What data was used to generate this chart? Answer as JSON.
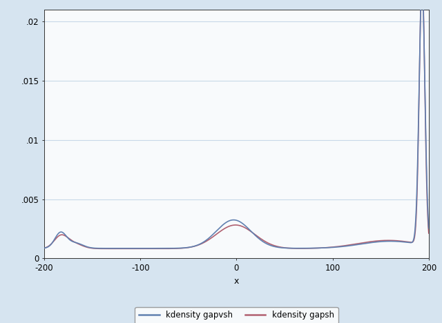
{
  "xlabel": "x",
  "ylabel": "",
  "xlim": [
    -200,
    200
  ],
  "ylim": [
    0,
    0.021
  ],
  "yticks": [
    0,
    0.005,
    0.01,
    0.015,
    0.02
  ],
  "ytick_labels": [
    "0",
    ".005",
    ".01",
    ".015",
    ".02"
  ],
  "xticks": [
    -200,
    -100,
    0,
    100,
    200
  ],
  "background_color": "#d6e4f0",
  "plot_bg_color": "#f8fafc",
  "grid_color": "#c8d8e8",
  "line1_color": "#6080b0",
  "line2_color": "#b06070",
  "line1_label": "kdensity gapvsh",
  "line2_label": "kdensity gapsh",
  "legend_bg": "#ffffff",
  "legend_border": "#888888"
}
